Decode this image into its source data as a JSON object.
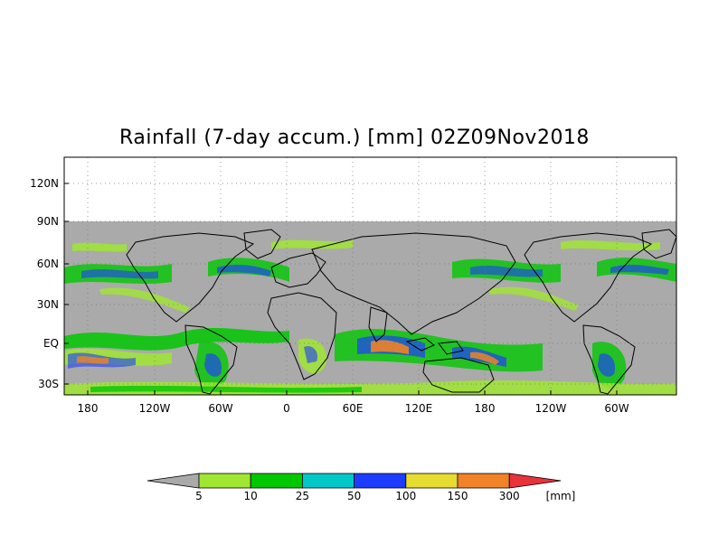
{
  "title": "Rainfall (7-day accum.) [mm] 02Z09Nov2018",
  "map": {
    "lat_labels": [
      "120N",
      "90N",
      "60N",
      "30N",
      "EQ",
      "30S"
    ],
    "lon_labels": [
      "180",
      "120W",
      "60W",
      "0",
      "60E",
      "120E",
      "180",
      "120W",
      "60W"
    ],
    "no_data_color": "#aaaaaa"
  },
  "colorbar": {
    "unit": "[mm]",
    "under_color": "#aaaaaa",
    "over_color": "#e8323c",
    "colors": [
      "#a0e632",
      "#00c800",
      "#00c8c8",
      "#1e3cff",
      "#e6dc32",
      "#f08228"
    ],
    "labels": [
      "5",
      "10",
      "25",
      "50",
      "100",
      "150",
      "300"
    ]
  }
}
